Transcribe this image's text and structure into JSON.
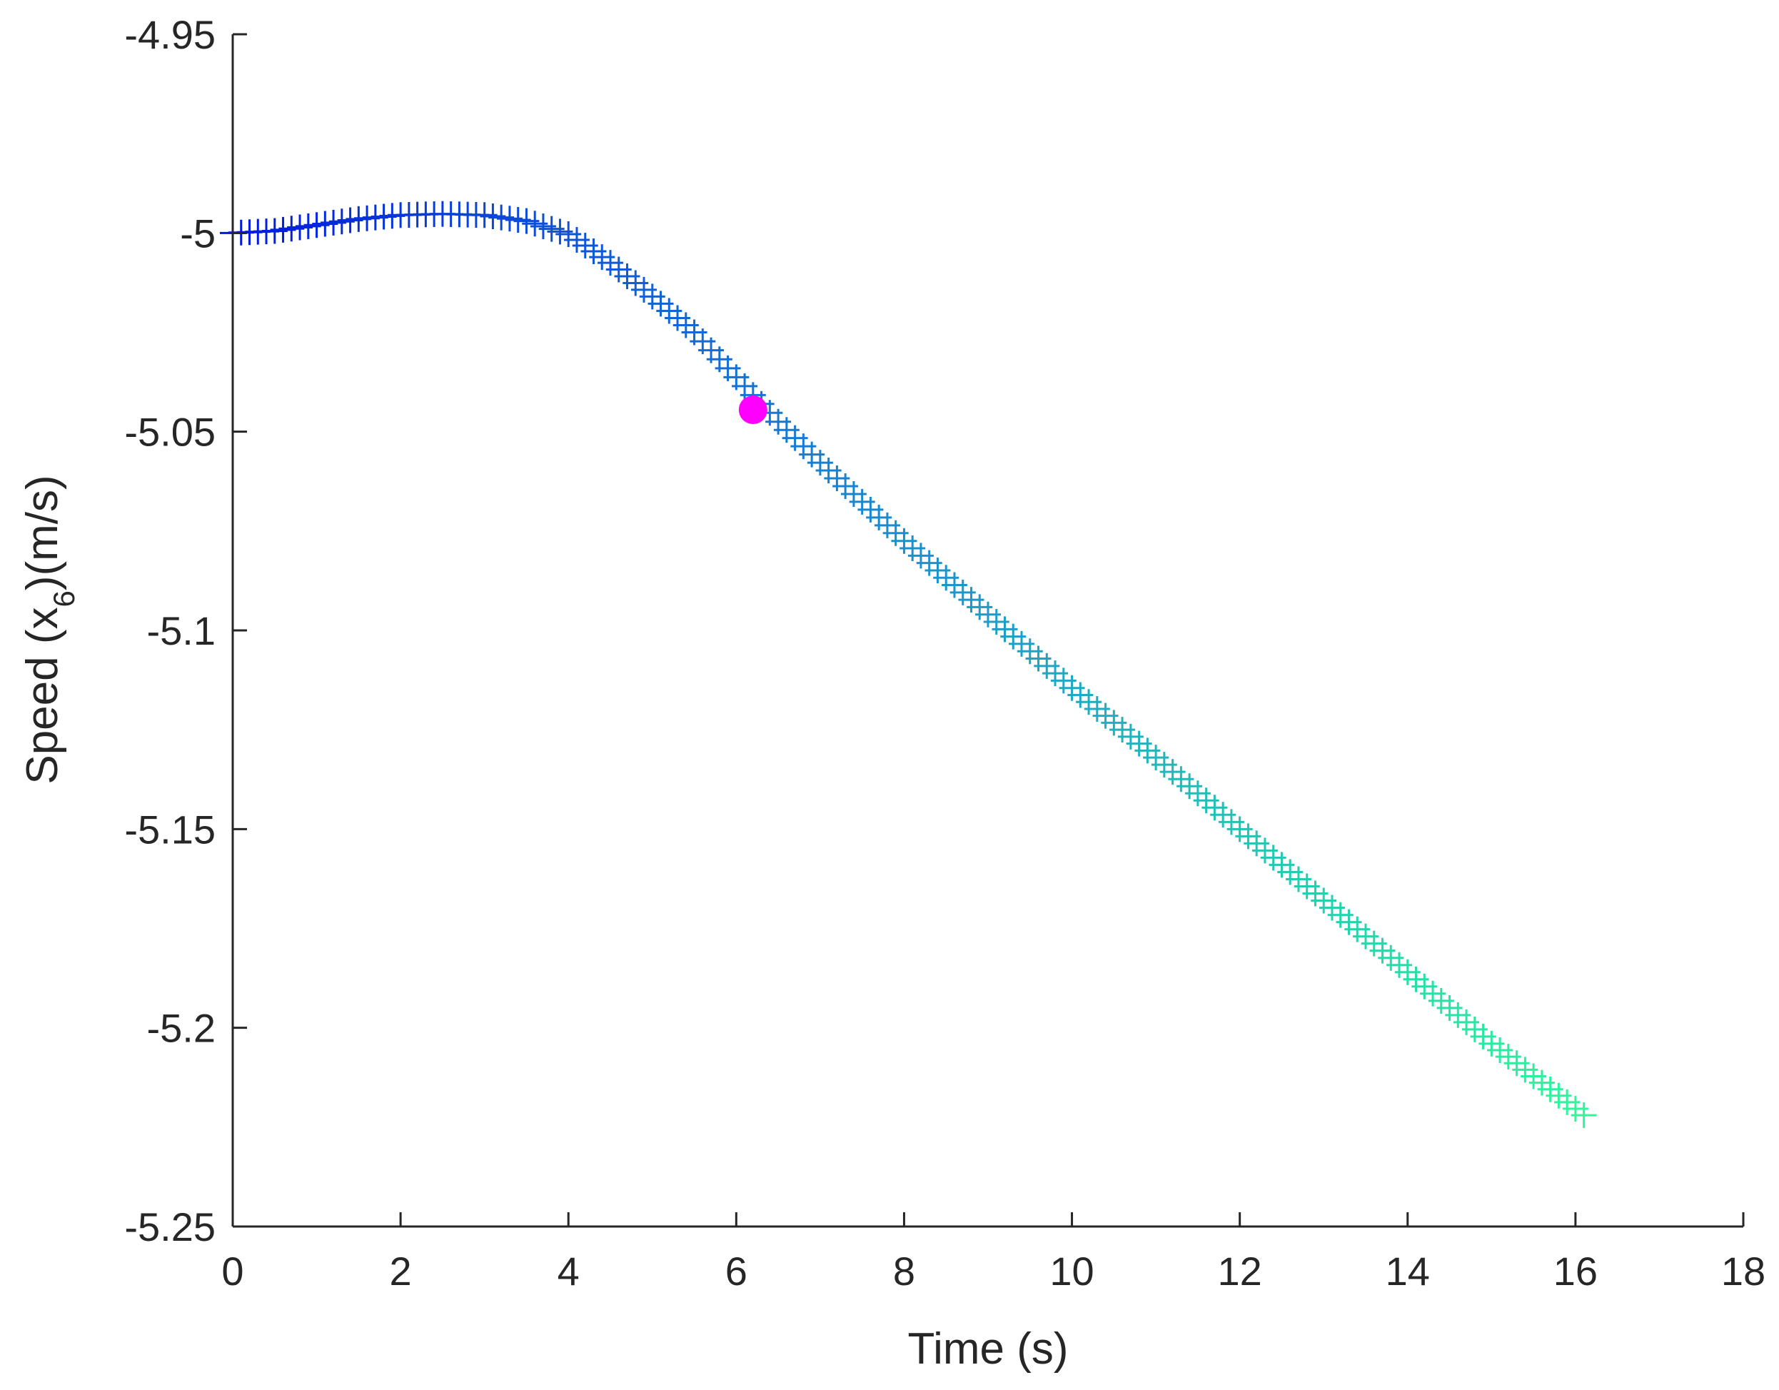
{
  "chart_data": {
    "type": "scatter",
    "xlabel": "Time (s)",
    "ylabel": {
      "prefix": "Speed (x",
      "subscript": "6",
      "suffix": ")(m/s)"
    },
    "xlim": [
      0,
      18
    ],
    "ylim": [
      -5.25,
      -4.95
    ],
    "x_ticks": [
      "0",
      "2",
      "4",
      "6",
      "8",
      "10",
      "12",
      "14",
      "16",
      "18"
    ],
    "y_ticks": [
      "-4.95",
      "-5",
      "-5.05",
      "-5.1",
      "-5.15",
      "-5.2",
      "-5.25"
    ],
    "grid": false,
    "box": "left-bottom",
    "marker": "+",
    "color_gradient": [
      "#0018e0",
      "#1a8fcf",
      "#2ef79a"
    ],
    "curve_keypoints": {
      "x": [
        0,
        0.5,
        1.0,
        1.5,
        2.0,
        2.5,
        3.0,
        3.5,
        4.0,
        4.5,
        5.0,
        5.5,
        6.0,
        6.5,
        7.0,
        8.0,
        9.0,
        10.0,
        11.0,
        12.0,
        13.0,
        14.0,
        15.0,
        16.1
      ],
      "y": [
        -5.0,
        -4.9995,
        -4.998,
        -4.9965,
        -4.9955,
        -4.9952,
        -4.9955,
        -4.997,
        -5.0003,
        -5.0075,
        -5.016,
        -5.025,
        -5.0363,
        -5.0475,
        -5.0578,
        -5.0775,
        -5.096,
        -5.1145,
        -5.132,
        -5.15,
        -5.168,
        -5.186,
        -5.204,
        -5.222
      ]
    },
    "sample_interval": 0.1,
    "highlight": {
      "x": 6.2,
      "y": -5.0445,
      "color": "#ff00ff",
      "marker": "circle"
    }
  }
}
